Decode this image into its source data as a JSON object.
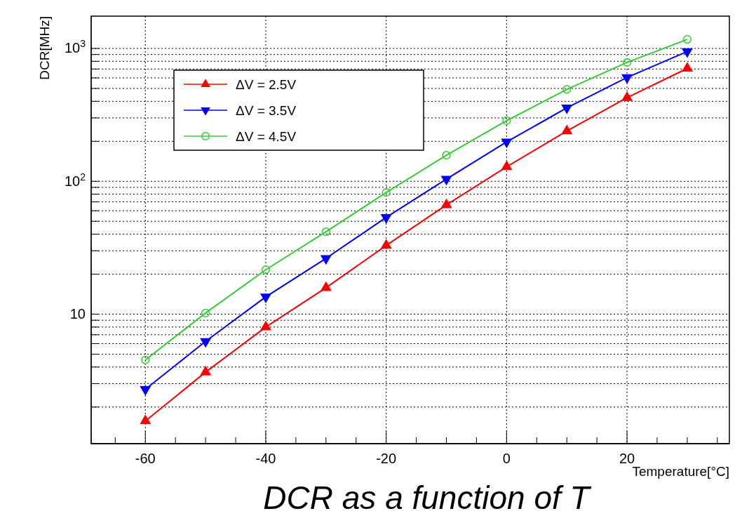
{
  "chart_data": {
    "type": "line",
    "xlabel": "Temperature[°C]",
    "ylabel": "DCR[MHz]",
    "x": [
      -60,
      -50,
      -40,
      -30,
      -20,
      -10,
      0,
      10,
      20,
      30
    ],
    "series": [
      {
        "name": "ΔV = 2.5V",
        "color": "#ff0000",
        "marker": "triangle",
        "values": [
          1.57,
          3.66,
          8.0,
          15.8,
          32.9,
          66.4,
          128.6,
          239,
          426,
          707
        ]
      },
      {
        "name": "ΔV = 3.5V",
        "color": "#0000ff",
        "marker": "triangle-down",
        "values": [
          2.72,
          6.24,
          13.5,
          26.3,
          53.5,
          104,
          198,
          357,
          604,
          949
        ]
      },
      {
        "name": "ΔV = 4.5V",
        "color": "#33cc33",
        "marker": "circle",
        "values": [
          4.52,
          10.2,
          21.6,
          41.7,
          82.4,
          157,
          286,
          492,
          785,
          1170
        ]
      }
    ],
    "log": "y",
    "xlim": [
      -69,
      37
    ],
    "ylim": [
      1.06,
      1750
    ],
    "xticks": [
      {
        "value": -65,
        "label": null
      },
      -60,
      {
        "value": -55,
        "label": null
      },
      {
        "value": -50,
        "label": null
      },
      {
        "value": -45,
        "label": null
      },
      -40,
      {
        "value": -35,
        "label": null
      },
      {
        "value": -30,
        "label": null
      },
      {
        "value": -25,
        "label": null
      },
      -20,
      {
        "value": -15,
        "label": null
      },
      {
        "value": -10,
        "label": null
      },
      {
        "value": -5,
        "label": null
      },
      0,
      {
        "value": 5,
        "label": null
      },
      {
        "value": 10,
        "label": null
      },
      {
        "value": 15,
        "label": null
      },
      20,
      {
        "value": 25,
        "label": null
      },
      {
        "value": 30,
        "label": null
      },
      {
        "value": 35,
        "label": null
      }
    ],
    "yticks": [
      {
        "value": 2,
        "label": null
      },
      {
        "value": 3,
        "label": null
      },
      {
        "value": 4,
        "label": null
      },
      {
        "value": 5,
        "label": null
      },
      {
        "value": 6,
        "label": null
      },
      {
        "value": 7,
        "label": null
      },
      {
        "value": 8,
        "label": null
      },
      {
        "value": 9,
        "label": null
      },
      10,
      {
        "value": 20,
        "label": null
      },
      {
        "value": 30,
        "label": null
      },
      {
        "value": 40,
        "label": null
      },
      {
        "value": 50,
        "label": null
      },
      {
        "value": 60,
        "label": null
      },
      {
        "value": 70,
        "label": null
      },
      {
        "value": 80,
        "label": null
      },
      {
        "value": 90,
        "label": null
      },
      {
        "value": 100,
        "label": "10$^{2}$"
      },
      {
        "value": 200,
        "label": null
      },
      {
        "value": 300,
        "label": null
      },
      {
        "value": 400,
        "label": null
      },
      {
        "value": 500,
        "label": null
      },
      {
        "value": 600,
        "label": null
      },
      {
        "value": 700,
        "label": null
      },
      {
        "value": 800,
        "label": null
      },
      {
        "value": 900,
        "label": null
      },
      {
        "value": 1000,
        "label": "10$^{3}$"
      }
    ],
    "grid": true,
    "legend": "top left",
    "line_style": "solid",
    "annotations": [
      "DCR as a function of T"
    ]
  }
}
